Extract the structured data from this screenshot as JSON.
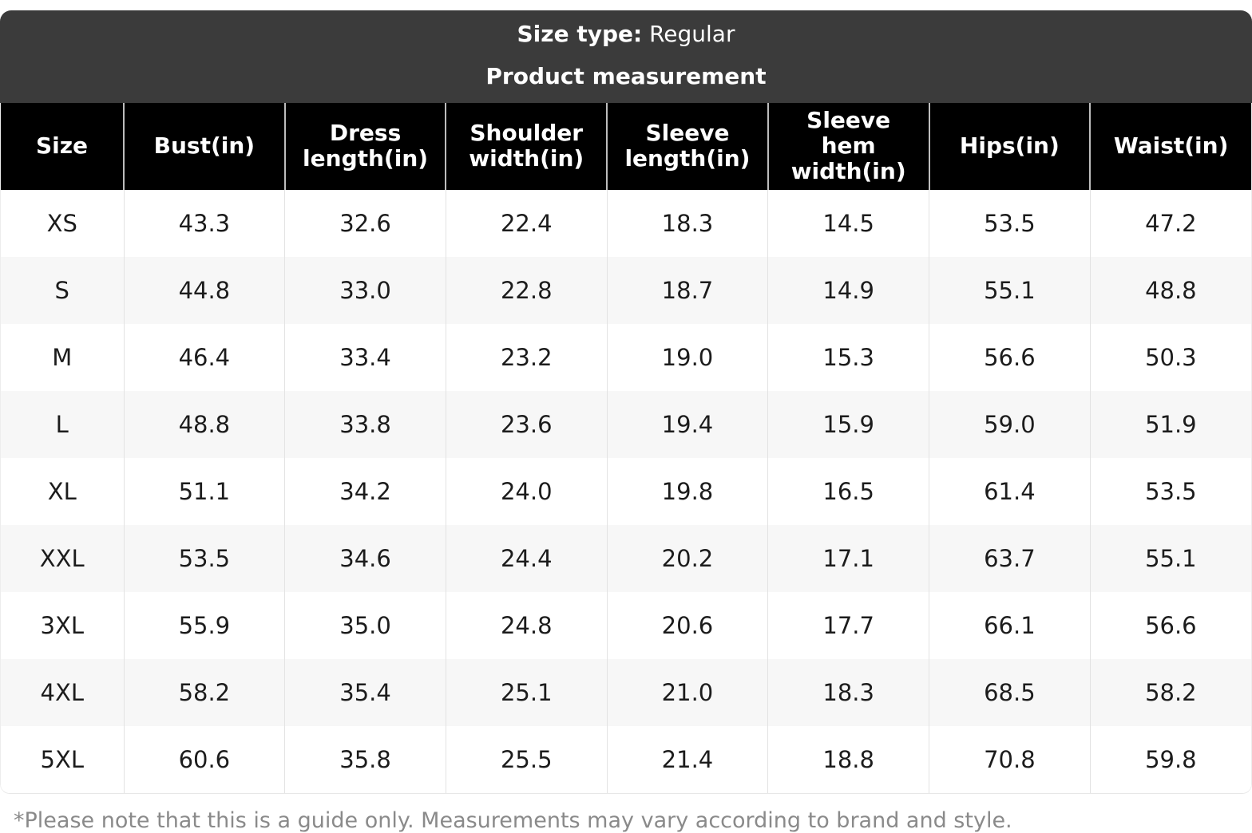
{
  "header": {
    "size_type_label": "Size type:",
    "size_type_value": " Regular",
    "title": "Product measurement"
  },
  "table": {
    "columns": [
      "Size",
      "Bust(in)",
      "Dress length(in)",
      "Shoulder width(in)",
      "Sleeve length(in)",
      "Sleeve hem width(in)",
      "Hips(in)",
      "Waist(in)"
    ],
    "rows": [
      {
        "size": "XS",
        "values": [
          "43.3",
          "32.6",
          "22.4",
          "18.3",
          "14.5",
          "53.5",
          "47.2"
        ]
      },
      {
        "size": "S",
        "values": [
          "44.8",
          "33.0",
          "22.8",
          "18.7",
          "14.9",
          "55.1",
          "48.8"
        ]
      },
      {
        "size": "M",
        "values": [
          "46.4",
          "33.4",
          "23.2",
          "19.0",
          "15.3",
          "56.6",
          "50.3"
        ]
      },
      {
        "size": "L",
        "values": [
          "48.8",
          "33.8",
          "23.6",
          "19.4",
          "15.9",
          "59.0",
          "51.9"
        ]
      },
      {
        "size": "XL",
        "values": [
          "51.1",
          "34.2",
          "24.0",
          "19.8",
          "16.5",
          "61.4",
          "53.5"
        ]
      },
      {
        "size": "XXL",
        "values": [
          "53.5",
          "34.6",
          "24.4",
          "20.2",
          "17.1",
          "63.7",
          "55.1"
        ]
      },
      {
        "size": "3XL",
        "values": [
          "55.9",
          "35.0",
          "24.8",
          "20.6",
          "17.7",
          "66.1",
          "56.6"
        ]
      },
      {
        "size": "4XL",
        "values": [
          "58.2",
          "35.4",
          "25.1",
          "21.0",
          "18.3",
          "68.5",
          "58.2"
        ]
      },
      {
        "size": "5XL",
        "values": [
          "60.6",
          "35.8",
          "25.5",
          "21.4",
          "18.8",
          "70.8",
          "59.8"
        ]
      }
    ]
  },
  "footnote": "*Please note that this is a guide only. Measurements may vary according to brand and style.",
  "colors": {
    "bar_bg": "#3b3b3b",
    "header_bg": "#000000",
    "header_text": "#ffffff",
    "stripe_bg": "#f7f7f7",
    "body_text": "#1c1c1c",
    "footnote_text": "#8a8a8a"
  }
}
